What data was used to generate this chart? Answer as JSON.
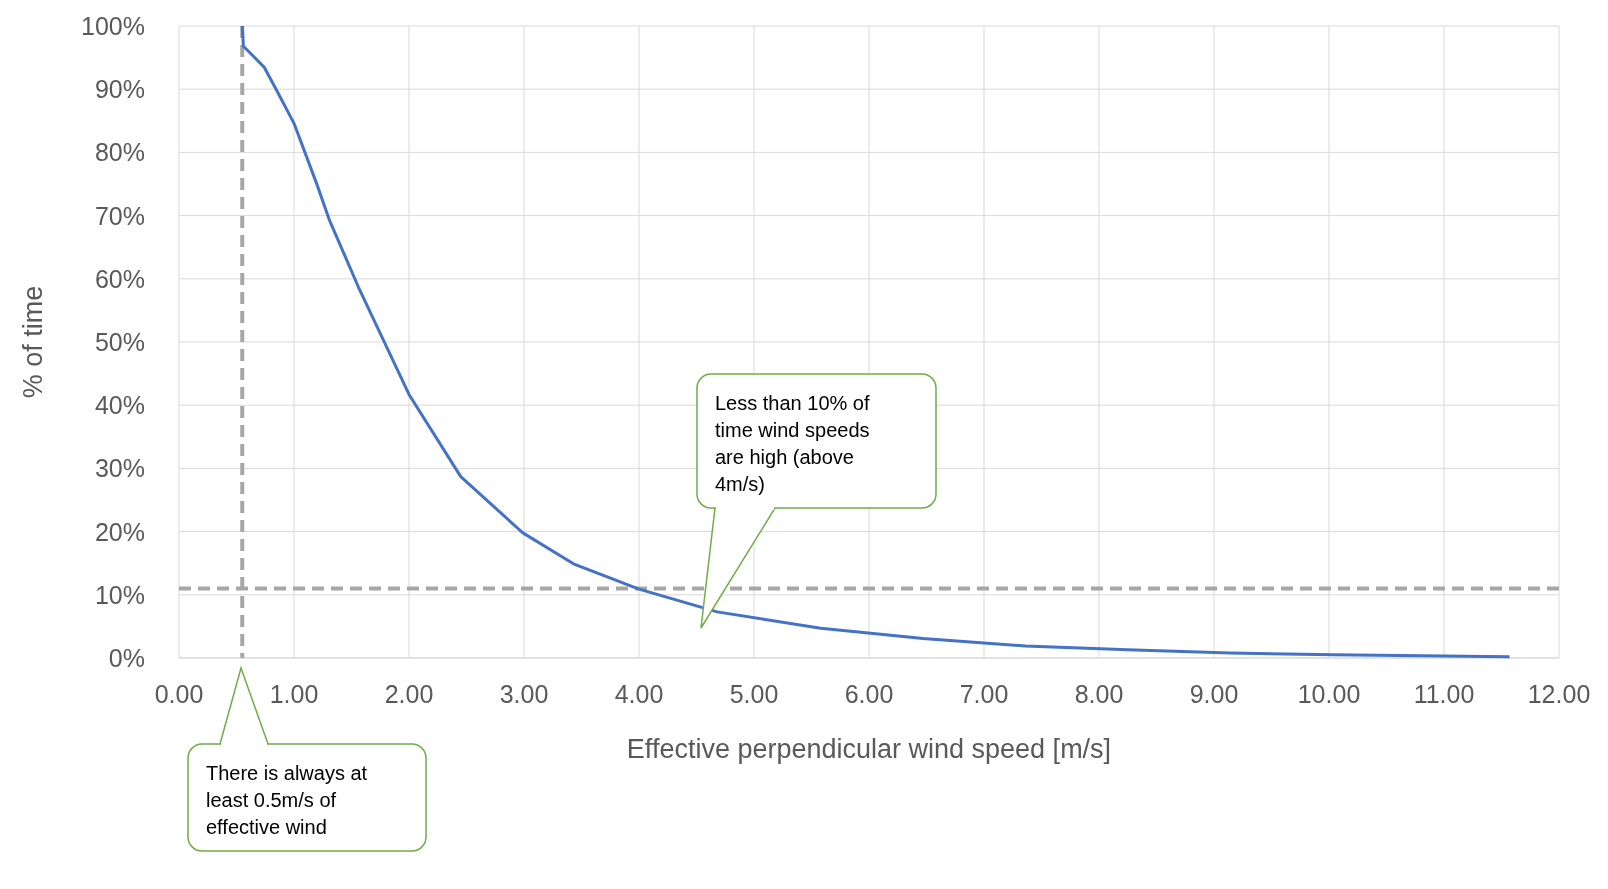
{
  "chart_data": {
    "type": "line",
    "xlabel": "Effective perpendicular wind speed [m/s]",
    "ylabel": "% of time",
    "series": [
      {
        "color": "#4472c4",
        "x": [
          0.55,
          0.56,
          0.74,
          0.85,
          1.0,
          1.2,
          1.31,
          1.56,
          2.0,
          2.45,
          2.99,
          3.43,
          4.0,
          4.68,
          5.58,
          6.47,
          7.36,
          8.25,
          9.14,
          10.04,
          11.57
        ],
        "values": [
          100,
          96.8,
          93.5,
          89.8,
          84.6,
          74.9,
          69.2,
          58.7,
          41.7,
          28.7,
          19.8,
          14.9,
          10.9,
          7.3,
          4.7,
          3.1,
          1.9,
          1.3,
          0.8,
          0.5,
          0.2
        ]
      }
    ],
    "xlim": [
      0,
      12
    ],
    "xticks": [
      {
        "value": 0,
        "label": "0.00"
      },
      {
        "value": 1,
        "label": "1.00"
      },
      {
        "value": 2,
        "label": "2.00"
      },
      {
        "value": 3,
        "label": "3.00"
      },
      {
        "value": 4,
        "label": "4.00"
      },
      {
        "value": 5,
        "label": "5.00"
      },
      {
        "value": 6,
        "label": "6.00"
      },
      {
        "value": 7,
        "label": "7.00"
      },
      {
        "value": 8,
        "label": "8.00"
      },
      {
        "value": 9,
        "label": "9.00"
      },
      {
        "value": 10,
        "label": "10.00"
      },
      {
        "value": 11,
        "label": "11.00"
      },
      {
        "value": 12,
        "label": "12.00"
      }
    ],
    "ylim": [
      0,
      100
    ],
    "yticks": [
      {
        "value": 0,
        "label": "0%"
      },
      {
        "value": 10,
        "label": "10%"
      },
      {
        "value": 20,
        "label": "20%"
      },
      {
        "value": 30,
        "label": "30%"
      },
      {
        "value": 40,
        "label": "40%"
      },
      {
        "value": 50,
        "label": "50%"
      },
      {
        "value": 60,
        "label": "60%"
      },
      {
        "value": 70,
        "label": "70%"
      },
      {
        "value": 80,
        "label": "80%"
      },
      {
        "value": 90,
        "label": "90%"
      },
      {
        "value": 100,
        "label": "100%"
      }
    ],
    "grid": true,
    "marker": "none",
    "line_style": "solid",
    "ref_lines": [
      {
        "axis": "x",
        "value": 0.55,
        "color": "#a6a6a6",
        "line_style": "dashed"
      },
      {
        "axis": "y",
        "value": 11,
        "color": "#a6a6a6",
        "line_style": "dashed"
      }
    ],
    "annotations": [
      "Less than 10% of time wind speeds are high (above 4m/s)",
      "There is always at least 0.5m/s of effective wind"
    ]
  }
}
